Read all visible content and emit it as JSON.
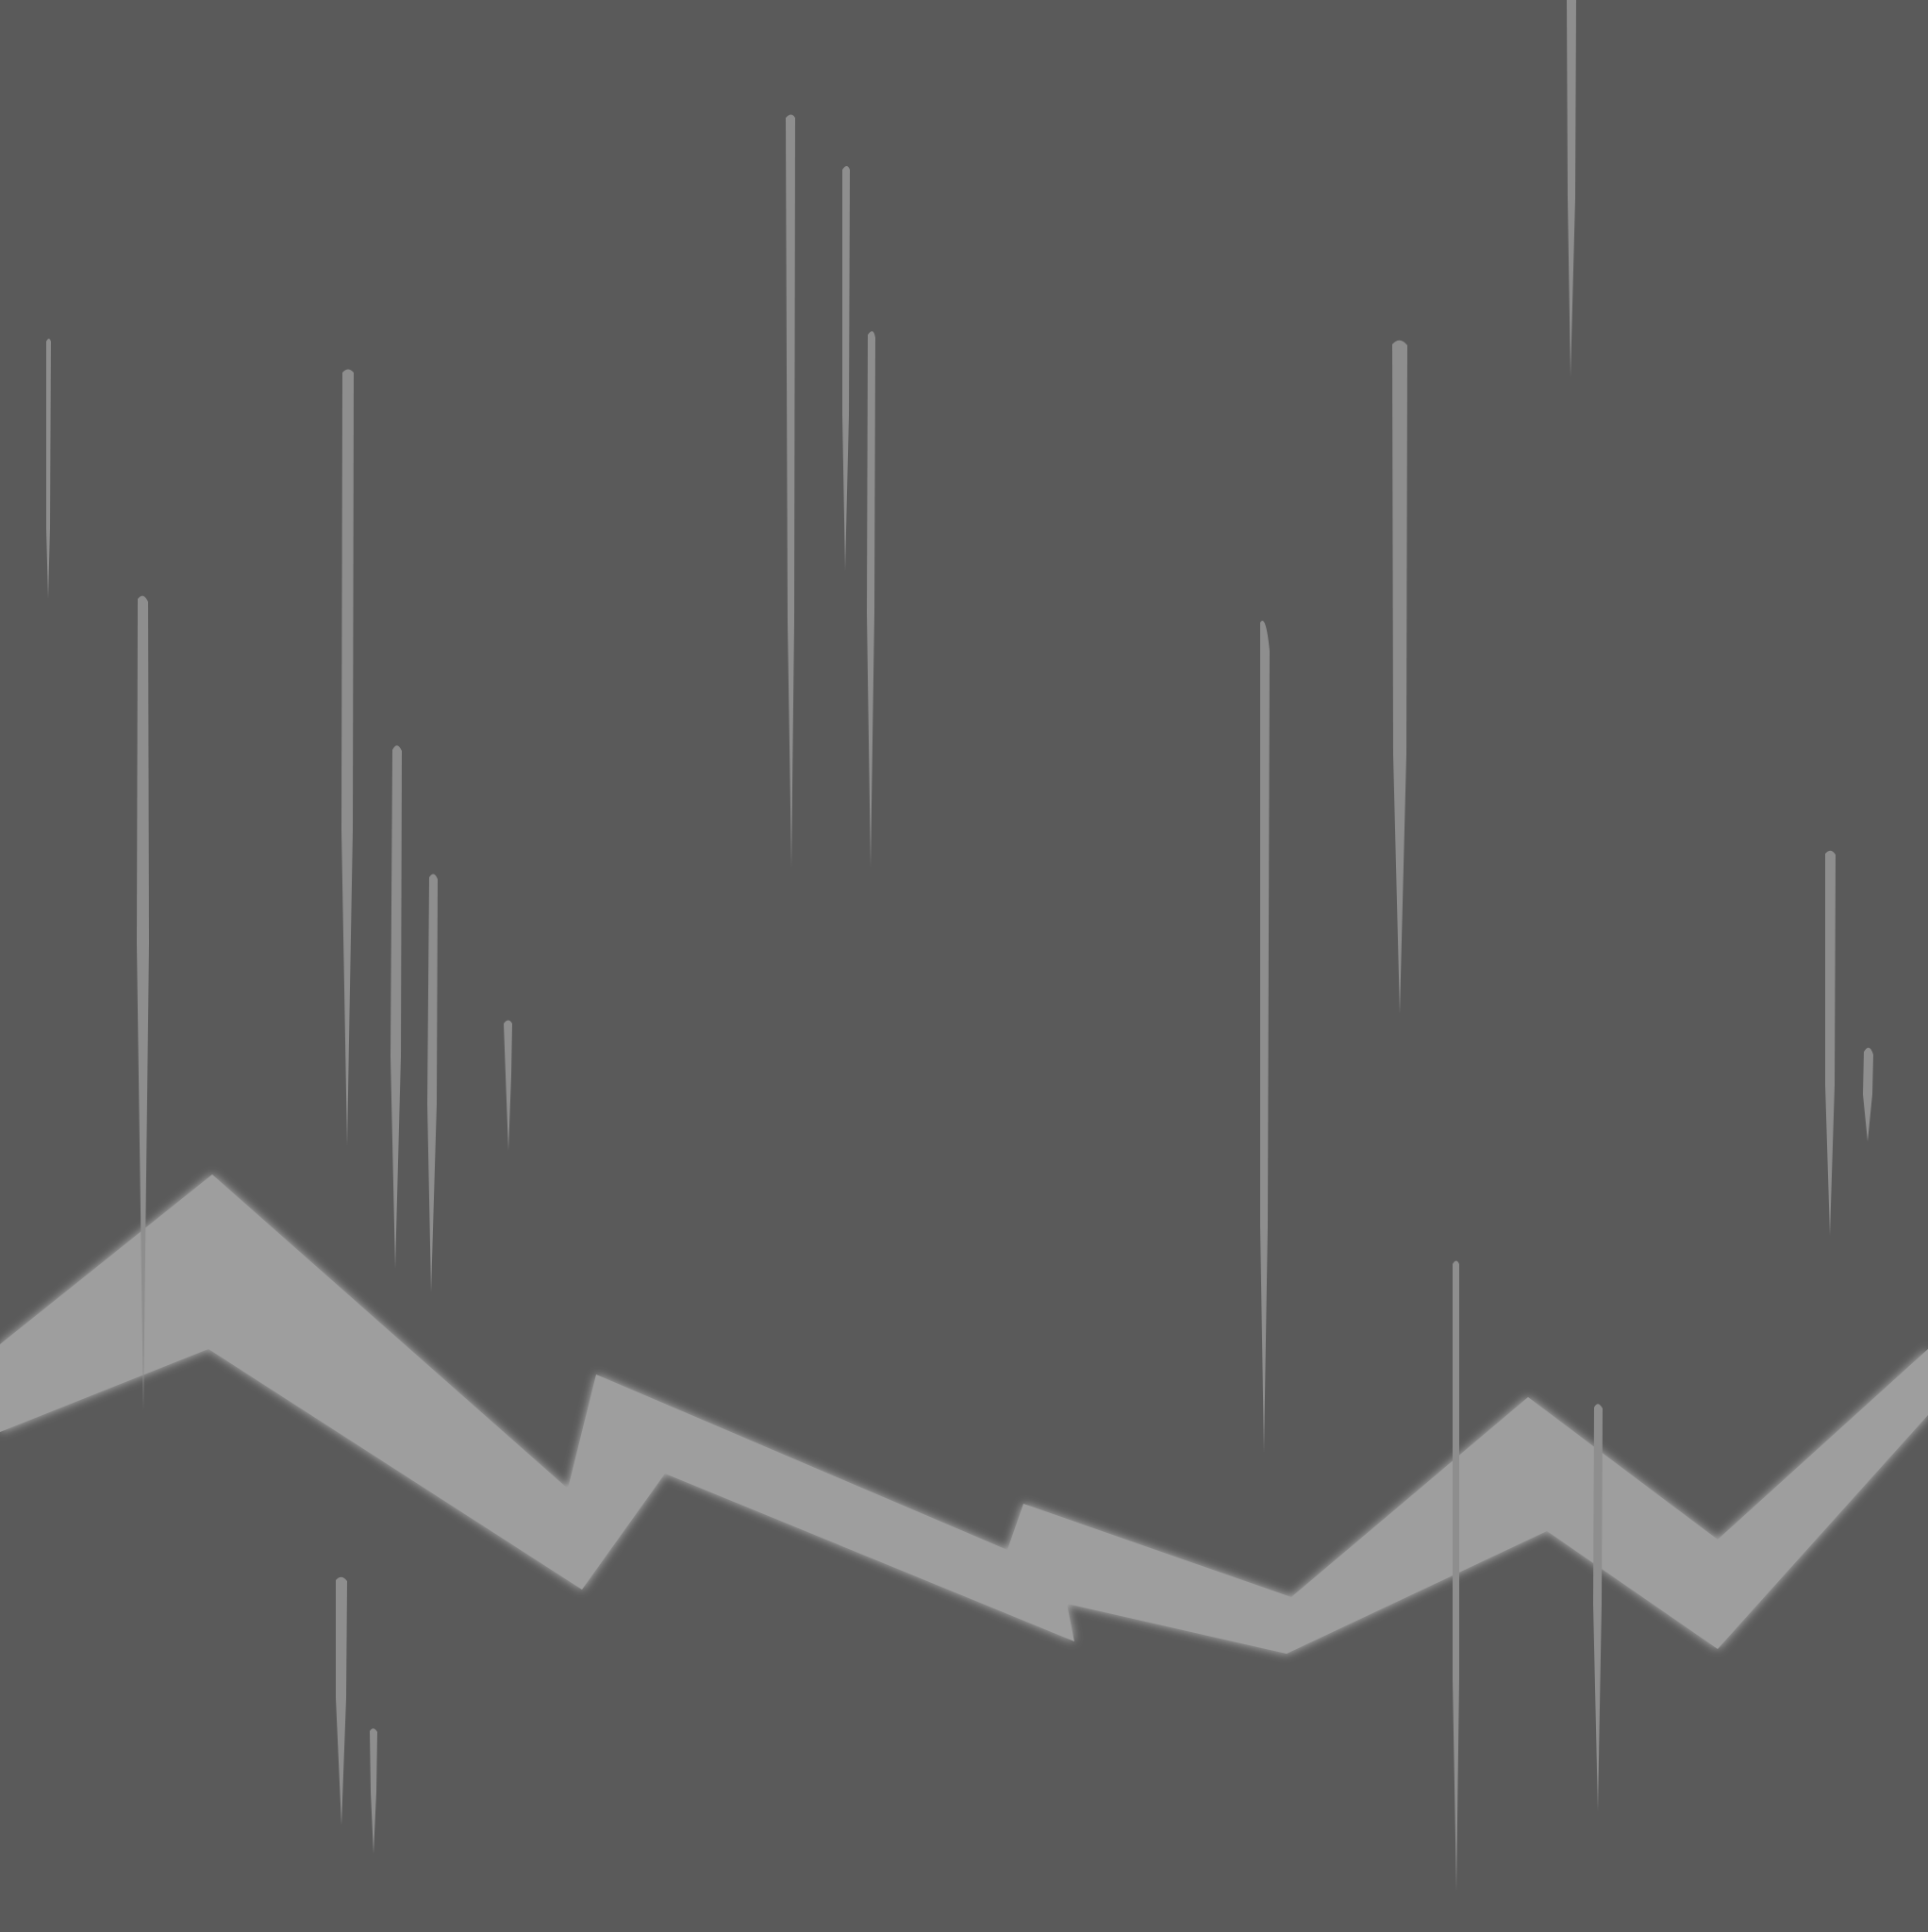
{
  "scene": {
    "description_tag": "rain-over-jagged-ridge",
    "colors": {
      "background": "#5a5a5a",
      "ridge": "#9e9e9e",
      "ridge_glow": "#bdbdbd",
      "rain": "#8e8e8e"
    }
  }
}
